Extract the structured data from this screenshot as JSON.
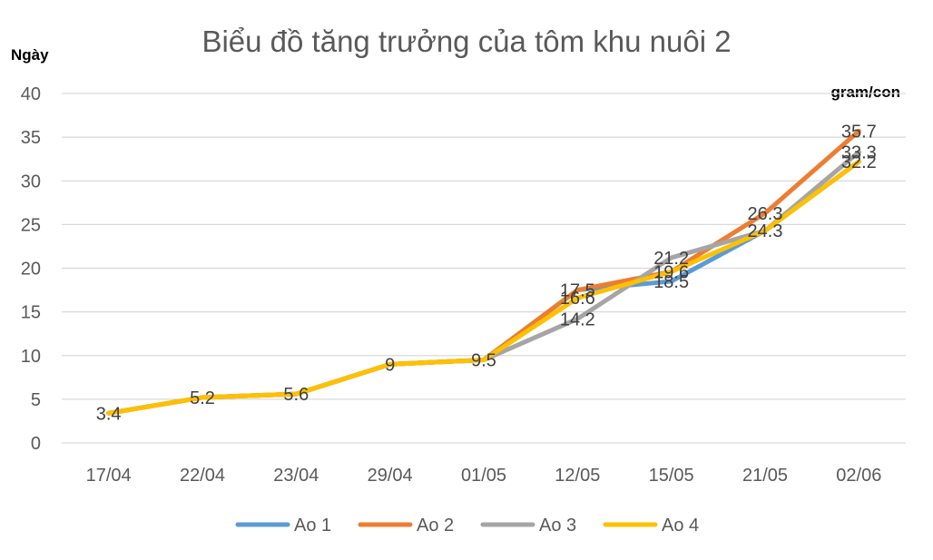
{
  "chart_data": {
    "type": "line",
    "title": "Biểu đồ tăng trưởng của tôm khu nuôi 2",
    "ylabel": "Ngày",
    "unit_label": "gram/con",
    "categories": [
      "17/04",
      "22/04",
      "23/04",
      "29/04",
      "01/05",
      "12/05",
      "15/05",
      "21/05",
      "02/06"
    ],
    "ylim": [
      0,
      40
    ],
    "yticks": [
      "0",
      "5",
      "10",
      "15",
      "20",
      "25",
      "30",
      "35",
      "40"
    ],
    "grid": true,
    "legend_position": "bottom",
    "series": [
      {
        "name": "Ao 1",
        "color": "#5b9bd5",
        "values": [
          3.4,
          5.2,
          5.6,
          9,
          9.5,
          17.5,
          18.5,
          24.3,
          32.2
        ],
        "labels": [
          null,
          null,
          null,
          null,
          null,
          null,
          "18.5",
          null,
          null
        ]
      },
      {
        "name": "Ao 2",
        "color": "#ed7d31",
        "values": [
          3.4,
          5.2,
          5.6,
          9,
          9.5,
          17.5,
          19.6,
          26.3,
          35.7
        ],
        "labels": [
          null,
          null,
          null,
          null,
          null,
          "17.5",
          null,
          "26.3",
          "35.7"
        ]
      },
      {
        "name": "Ao 3",
        "color": "#a5a5a5",
        "values": [
          3.4,
          5.2,
          5.6,
          9,
          9.5,
          14.2,
          21.2,
          24.3,
          33.3
        ],
        "labels": [
          null,
          null,
          null,
          null,
          null,
          "14.2",
          "21.2",
          null,
          "33.3"
        ]
      },
      {
        "name": "Ao 4",
        "color": "#ffc000",
        "values": [
          3.4,
          5.2,
          5.6,
          9,
          9.5,
          16.6,
          19.6,
          24.3,
          32.2
        ],
        "labels": [
          "3.4",
          "5.2",
          "5.6",
          "9",
          "9.5",
          "16.6",
          "19.6",
          "24.3",
          "32.2"
        ]
      }
    ]
  }
}
